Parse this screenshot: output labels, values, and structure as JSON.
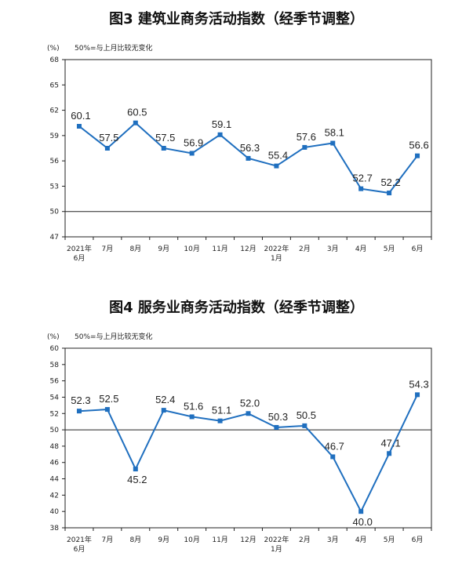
{
  "chart_data": [
    {
      "type": "line",
      "title": "图3  建筑业商务活动指数（经季节调整）",
      "unit": "(%)",
      "note": "50%=与上月比较无变化",
      "categories": [
        "2021年6月",
        "7月",
        "8月",
        "9月",
        "10月",
        "11月",
        "12月",
        "2022年1月",
        "2月",
        "3月",
        "4月",
        "5月",
        "6月"
      ],
      "category_lines": [
        [
          "2021年",
          "6月"
        ],
        [
          "7月"
        ],
        [
          "8月"
        ],
        [
          "9月"
        ],
        [
          "10月"
        ],
        [
          "11月"
        ],
        [
          "12月"
        ],
        [
          "2022年",
          "1月"
        ],
        [
          "2月"
        ],
        [
          "3月"
        ],
        [
          "4月"
        ],
        [
          "5月"
        ],
        [
          "6月"
        ]
      ],
      "values": [
        60.1,
        57.5,
        60.5,
        57.5,
        56.9,
        59.1,
        56.3,
        55.4,
        57.6,
        58.1,
        52.7,
        52.2,
        56.6
      ],
      "value_labels": [
        "60.1",
        "57.5",
        "60.5",
        "57.5",
        "56.9",
        "59.1",
        "56.3",
        "55.4",
        "57.6",
        "58.1",
        "52.7",
        "52.2",
        "56.6"
      ],
      "ylim": [
        47,
        68
      ],
      "yticks": [
        47,
        50,
        53,
        56,
        59,
        62,
        65,
        68
      ],
      "reference_line": 50,
      "color": "#1f6fbf",
      "grid": false
    },
    {
      "type": "line",
      "title": "图4  服务业商务活动指数（经季节调整）",
      "unit": "(%)",
      "note": "50%=与上月比较无变化",
      "categories": [
        "2021年6月",
        "7月",
        "8月",
        "9月",
        "10月",
        "11月",
        "12月",
        "2022年1月",
        "2月",
        "3月",
        "4月",
        "5月",
        "6月"
      ],
      "category_lines": [
        [
          "2021年",
          "6月"
        ],
        [
          "7月"
        ],
        [
          "8月"
        ],
        [
          "9月"
        ],
        [
          "10月"
        ],
        [
          "11月"
        ],
        [
          "12月"
        ],
        [
          "2022年",
          "1月"
        ],
        [
          "2月"
        ],
        [
          "3月"
        ],
        [
          "4月"
        ],
        [
          "5月"
        ],
        [
          "6月"
        ]
      ],
      "values": [
        52.3,
        52.5,
        45.2,
        52.4,
        51.6,
        51.1,
        52.0,
        50.3,
        50.5,
        46.7,
        40.0,
        47.1,
        54.3
      ],
      "value_labels": [
        "52.3",
        "52.5",
        "45.2",
        "52.4",
        "51.6",
        "51.1",
        "52.0",
        "50.3",
        "50.5",
        "46.7",
        "40.0",
        "47.1",
        "54.3"
      ],
      "ylim": [
        38,
        60
      ],
      "yticks": [
        38,
        40,
        42,
        44,
        46,
        48,
        50,
        52,
        54,
        56,
        58,
        60
      ],
      "reference_line": 50,
      "color": "#1f6fbf",
      "grid": false
    }
  ]
}
